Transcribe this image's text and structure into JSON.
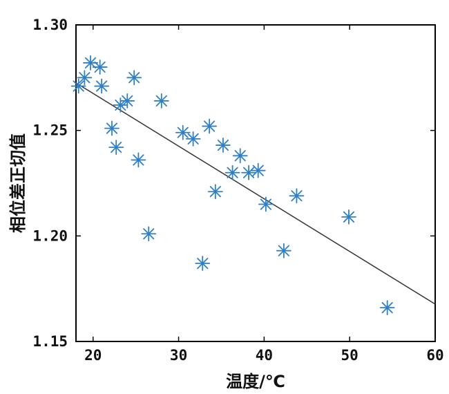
{
  "chart_data": {
    "type": "scatter",
    "title": "",
    "xlabel": "温度/℃",
    "ylabel": "相位差正切值",
    "xlim": [
      18,
      60
    ],
    "ylim": [
      1.15,
      1.3
    ],
    "xticks": [
      20,
      30,
      40,
      50,
      60
    ],
    "xtick_labels": [
      "20",
      "30",
      "40",
      "50",
      "60"
    ],
    "yticks": [
      1.15,
      1.2,
      1.25,
      1.3
    ],
    "ytick_labels": [
      "1.15",
      "1.20",
      "1.25",
      "1.30"
    ],
    "grid": false,
    "marker": "asterisk",
    "marker_color": "#2e7fc4",
    "line_color": "#333333",
    "series": [
      {
        "x": [
          18.3,
          19.0,
          19.7,
          20.8,
          21.0,
          22.2,
          22.7,
          23.2,
          24.0,
          24.8,
          25.3,
          26.5,
          28.0,
          30.5,
          31.7,
          32.8,
          33.6,
          34.3,
          35.2,
          36.3,
          37.2,
          38.2,
          39.3,
          40.2,
          42.3,
          43.8,
          49.9,
          54.4
        ],
        "y": [
          1.271,
          1.275,
          1.282,
          1.28,
          1.271,
          1.251,
          1.242,
          1.262,
          1.264,
          1.275,
          1.236,
          1.201,
          1.264,
          1.249,
          1.246,
          1.187,
          1.252,
          1.221,
          1.243,
          1.23,
          1.238,
          1.23,
          1.231,
          1.215,
          1.193,
          1.219,
          1.209,
          1.166
        ]
      }
    ],
    "fit_line": {
      "x": [
        18,
        60
      ],
      "y": [
        1.2725,
        1.1677
      ]
    }
  }
}
